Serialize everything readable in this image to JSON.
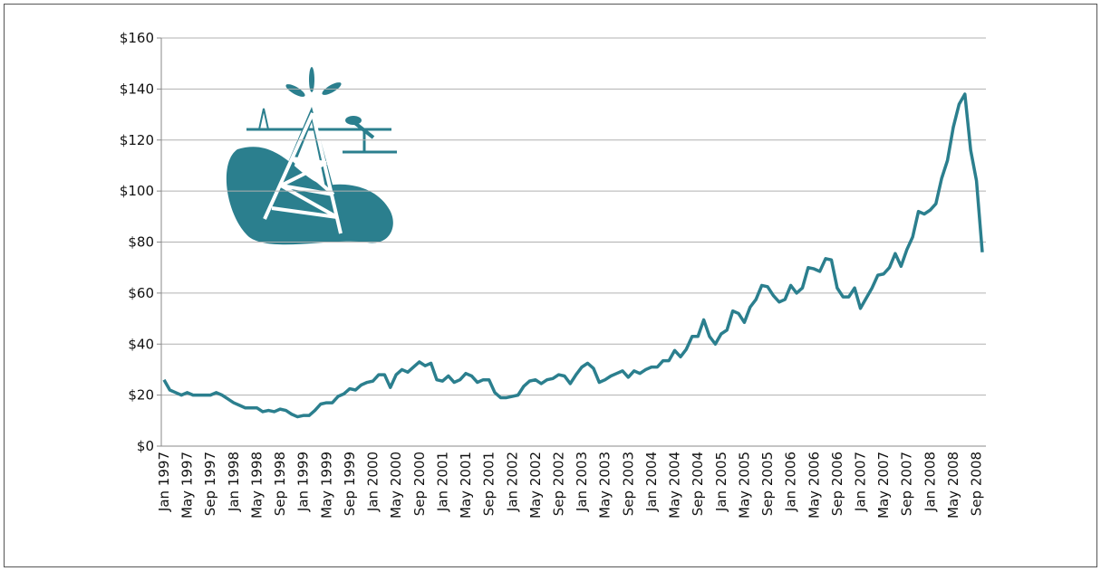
{
  "chart_data": {
    "type": "line",
    "categories": [
      "Jan 1997",
      null,
      null,
      null,
      "May 1997",
      null,
      null,
      null,
      "Sep 1997",
      null,
      null,
      null,
      "Jan 1998",
      null,
      null,
      null,
      "May 1998",
      null,
      null,
      null,
      "Sep 1998",
      null,
      null,
      null,
      "Jan 1999",
      null,
      null,
      null,
      "May 1999",
      null,
      null,
      null,
      "Sep 1999",
      null,
      null,
      null,
      "Jan 2000",
      null,
      null,
      null,
      "May 2000",
      null,
      null,
      null,
      "Sep 2000",
      null,
      null,
      null,
      "Jan 2001",
      null,
      null,
      null,
      "May 2001",
      null,
      null,
      null,
      "Sep 2001",
      null,
      null,
      null,
      "Jan 2002",
      null,
      null,
      null,
      "May 2002",
      null,
      null,
      null,
      "Sep 2002",
      null,
      null,
      null,
      "Jan 2003",
      null,
      null,
      null,
      "May 2003",
      null,
      null,
      null,
      "Sep 2003",
      null,
      null,
      null,
      "Jan 2004",
      null,
      null,
      null,
      "May 2004",
      null,
      null,
      null,
      "Sep 2004",
      null,
      null,
      null,
      "Jan 2005",
      null,
      null,
      null,
      "May 2005",
      null,
      null,
      null,
      "Sep 2005",
      null,
      null,
      null,
      "Jan 2006",
      null,
      null,
      null,
      "May 2006",
      null,
      null,
      null,
      "Sep 2006",
      null,
      null,
      null,
      "Jan 2007",
      null,
      null,
      null,
      "May 2007",
      null,
      null,
      null,
      "Sep 2007",
      null,
      null,
      null,
      "Jan 2008",
      null,
      null,
      null,
      "May 2008",
      null,
      null,
      null,
      "Sep 2008",
      null
    ],
    "series": [
      {
        "color": "#2b7f8e",
        "values": [
          26,
          22,
          21,
          20,
          21,
          20,
          20,
          20,
          20,
          21,
          20,
          18.5,
          17,
          16,
          15,
          15,
          15,
          13.5,
          14,
          13.5,
          14.5,
          14,
          12.5,
          11.5,
          12,
          12,
          14,
          16.5,
          17,
          17,
          19.5,
          20.5,
          22.5,
          22,
          24,
          25,
          25.5,
          28,
          28,
          23,
          28,
          30,
          29,
          31,
          33,
          31.5,
          32.5,
          26,
          25.5,
          27.5,
          25,
          26,
          28.5,
          27.5,
          25,
          26,
          26,
          21,
          19,
          19,
          19.5,
          20,
          23.5,
          25.5,
          26,
          24.5,
          26,
          26.5,
          28,
          27.5,
          24.5,
          28,
          31,
          32.5,
          30.5,
          25,
          26,
          27.5,
          28.5,
          29.5,
          27,
          29.5,
          28.5,
          30,
          31,
          31,
          33.5,
          33.5,
          37.5,
          35,
          38,
          43,
          43,
          49.5,
          43,
          40,
          44,
          45.5,
          53,
          52,
          48.5,
          54.5,
          57.5,
          63,
          62.5,
          59,
          56.5,
          57.5,
          63,
          60,
          62,
          70,
          69.5,
          68.5,
          73.5,
          73,
          62,
          58.5,
          58.5,
          62,
          54,
          58,
          62,
          67,
          67.5,
          70,
          75.5,
          70.5,
          77,
          82,
          92,
          91,
          92.5,
          95,
          105,
          112,
          125,
          134,
          138,
          116,
          104,
          76
        ]
      }
    ],
    "ylim": [
      0,
      160
    ],
    "yticks": [
      {
        "value": 0,
        "label": "$0"
      },
      {
        "value": 20,
        "label": "$20"
      },
      {
        "value": 40,
        "label": "$40"
      },
      {
        "value": 60,
        "label": "$60"
      },
      {
        "value": 80,
        "label": "$80"
      },
      {
        "value": 100,
        "label": "$100"
      },
      {
        "value": 120,
        "label": "$120"
      },
      {
        "value": 140,
        "label": "$140"
      },
      {
        "value": 160,
        "label": "$160"
      }
    ],
    "grid": true
  }
}
